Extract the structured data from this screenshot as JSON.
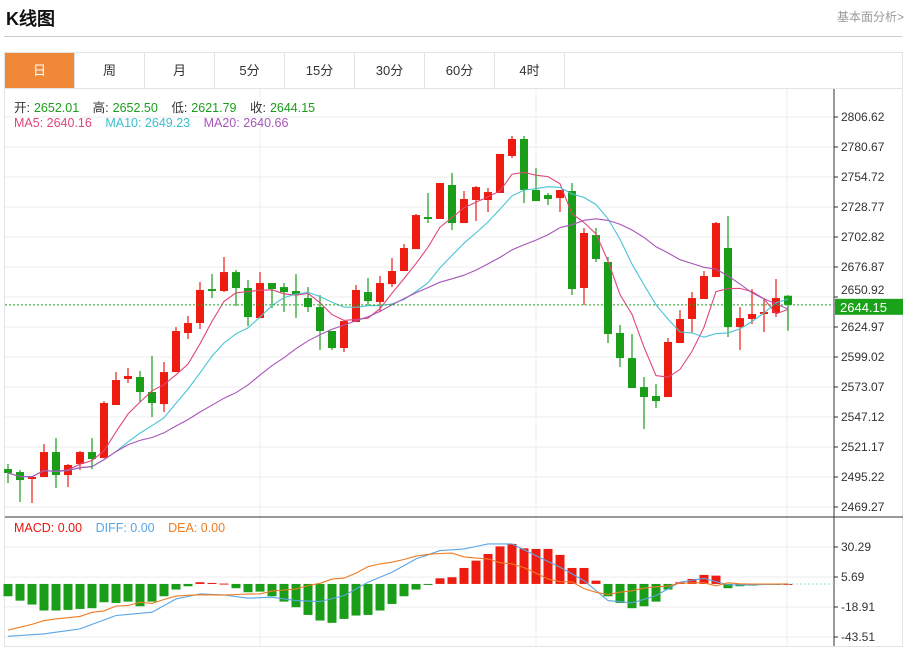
{
  "header": {
    "title": "K线图",
    "link": "基本面分析>"
  },
  "tabs": [
    {
      "label": "日",
      "active": true
    },
    {
      "label": "周"
    },
    {
      "label": "月"
    },
    {
      "label": "5分"
    },
    {
      "label": "15分"
    },
    {
      "label": "30分"
    },
    {
      "label": "60分"
    },
    {
      "label": "4时"
    }
  ],
  "ohlc_legend": {
    "open_label": "开:",
    "open": "2652.01",
    "high_label": "高:",
    "high": "2652.50",
    "low_label": "低:",
    "low": "2621.79",
    "close_label": "收:",
    "close": "2644.15"
  },
  "ma_legend": {
    "ma5": "MA5: 2640.16",
    "ma10": "MA10: 2649.23",
    "ma20": "MA20: 2640.66"
  },
  "macd_legend": {
    "macd": "MACD: 0.00",
    "diff": "DIFF: 0.00",
    "dea": "DEA: 0.00"
  },
  "colors": {
    "up": "#ee1c10",
    "down": "#1a9e1a",
    "ma5": "#e0457b",
    "ma10": "#49c4d4",
    "ma20": "#a855b8",
    "diff": "#5aa5e6",
    "dea": "#f07c21",
    "accent": "#f0883a",
    "last_price": "#1aa31a"
  },
  "chart_data": {
    "type": "candlestick",
    "price_ticks": [
      "2806.62",
      "2780.67",
      "2754.72",
      "2728.77",
      "2702.82",
      "2676.87",
      "2650.92",
      "2624.97",
      "2599.02",
      "2573.07",
      "2547.12",
      "2521.17",
      "2495.22",
      "2469.27"
    ],
    "ylim": [
      2469.27,
      2806.62
    ],
    "last_price": "2644.15",
    "candles_ohlc": [
      [
        2502.1,
        2506.5,
        2490.0,
        2498.7
      ],
      [
        2499.5,
        2501.3,
        2473.6,
        2492.6
      ],
      [
        2493.5,
        2495.2,
        2472.7,
        2495.2
      ],
      [
        2495.2,
        2523.7,
        2495.2,
        2516.8
      ],
      [
        2516.8,
        2528.9,
        2485.7,
        2496.9
      ],
      [
        2496.9,
        2506.5,
        2486.5,
        2505.6
      ],
      [
        2506.5,
        2517.7,
        2501.3,
        2516.8
      ],
      [
        2516.8,
        2528.9,
        2502.1,
        2510.8
      ],
      [
        2511.6,
        2560.9,
        2511.6,
        2559.2
      ],
      [
        2557.5,
        2586.0,
        2557.5,
        2579.1
      ],
      [
        2580.0,
        2589.5,
        2576.5,
        2582.6
      ],
      [
        2581.7,
        2586.9,
        2560.1,
        2568.7
      ],
      [
        2568.7,
        2599.9,
        2547.1,
        2559.2
      ],
      [
        2558.3,
        2594.7,
        2551.4,
        2586.0
      ],
      [
        2586.0,
        2624.9,
        2586.0,
        2621.5
      ],
      [
        2619.8,
        2634.5,
        2614.6,
        2628.4
      ],
      [
        2628.4,
        2663.9,
        2623.2,
        2657.0
      ],
      [
        2657.8,
        2670.8,
        2650.0,
        2656.1
      ],
      [
        2656.1,
        2685.5,
        2655.2,
        2672.5
      ],
      [
        2672.5,
        2674.3,
        2643.1,
        2658.7
      ],
      [
        2658.7,
        2665.6,
        2625.8,
        2633.6
      ],
      [
        2632.7,
        2672.5,
        2632.7,
        2663.0
      ],
      [
        2663.0,
        2663.0,
        2641.4,
        2657.8
      ],
      [
        2659.5,
        2663.0,
        2637.9,
        2655.2
      ],
      [
        2656.1,
        2670.8,
        2632.7,
        2652.6
      ],
      [
        2650.0,
        2659.5,
        2637.9,
        2642.2
      ],
      [
        2642.2,
        2652.6,
        2605.0,
        2621.5
      ],
      [
        2621.5,
        2621.5,
        2605.0,
        2606.8
      ],
      [
        2606.8,
        2630.1,
        2603.3,
        2630.1
      ],
      [
        2629.3,
        2661.3,
        2629.3,
        2657.0
      ],
      [
        2655.2,
        2667.3,
        2644.0,
        2647.4
      ],
      [
        2646.6,
        2669.1,
        2637.9,
        2663.0
      ],
      [
        2662.1,
        2684.6,
        2659.5,
        2673.4
      ],
      [
        2673.4,
        2696.7,
        2673.4,
        2693.3
      ],
      [
        2692.4,
        2722.7,
        2692.4,
        2721.8
      ],
      [
        2720.1,
        2740.9,
        2714.9,
        2718.4
      ],
      [
        2718.4,
        2749.5,
        2718.4,
        2749.5
      ],
      [
        2747.8,
        2758.2,
        2708.9,
        2714.9
      ],
      [
        2714.9,
        2742.6,
        2714.9,
        2735.7
      ],
      [
        2734.8,
        2746.9,
        2716.6,
        2746.0
      ],
      [
        2734.8,
        2745.2,
        2724.4,
        2741.7
      ],
      [
        2740.9,
        2774.6,
        2740.9,
        2774.6
      ],
      [
        2772.9,
        2790.2,
        2771.1,
        2787.6
      ],
      [
        2787.6,
        2790.2,
        2732.2,
        2743.5
      ],
      [
        2743.5,
        2762.5,
        2733.9,
        2733.9
      ],
      [
        2739.1,
        2740.9,
        2730.5,
        2735.7
      ],
      [
        2736.5,
        2743.5,
        2724.4,
        2743.5
      ],
      [
        2742.6,
        2749.5,
        2652.6,
        2657.8
      ],
      [
        2658.7,
        2710.6,
        2644.0,
        2706.3
      ],
      [
        2704.5,
        2710.6,
        2681.2,
        2683.8
      ],
      [
        2681.2,
        2685.5,
        2611.1,
        2618.9
      ],
      [
        2619.8,
        2626.7,
        2590.3,
        2598.1
      ],
      [
        2598.1,
        2618.9,
        2572.2,
        2572.2
      ],
      [
        2573.0,
        2581.7,
        2536.7,
        2564.4
      ],
      [
        2565.3,
        2575.6,
        2554.9,
        2560.9
      ],
      [
        2564.4,
        2615.4,
        2564.4,
        2612.0
      ],
      [
        2611.1,
        2639.6,
        2611.1,
        2631.9
      ],
      [
        2631.9,
        2655.2,
        2619.8,
        2650.0
      ],
      [
        2649.2,
        2673.4,
        2649.2,
        2669.1
      ],
      [
        2668.2,
        2715.8,
        2668.2,
        2714.9
      ],
      [
        2693.3,
        2721.0,
        2616.3,
        2624.9
      ],
      [
        2624.9,
        2642.2,
        2605.0,
        2632.7
      ],
      [
        2631.9,
        2657.8,
        2627.5,
        2636.2
      ],
      [
        2636.2,
        2650.0,
        2620.6,
        2637.9
      ],
      [
        2637.0,
        2666.5,
        2633.6,
        2650.0
      ],
      [
        2652.01,
        2652.5,
        2621.79,
        2644.15
      ]
    ],
    "candles_format": "open, high, low, close",
    "macd_ticks": [
      "30.29",
      "5.69",
      "-18.91",
      "-43.51"
    ],
    "macd_ylim": [
      -43.51,
      30.29
    ],
    "macd_hist": [
      -10.1,
      -13.7,
      -16.9,
      -21.8,
      -21.8,
      -21.3,
      -20.5,
      -19.9,
      -15.0,
      -15.6,
      -14.5,
      -18.3,
      -14.5,
      -10.1,
      -4.6,
      -1.9,
      1.4,
      0.8,
      0.3,
      -3.5,
      -6.8,
      -6.3,
      -10.1,
      -14.5,
      -19.1,
      -25.4,
      -30.0,
      -31.9,
      -28.7,
      -25.9,
      -25.4,
      -21.8,
      -16.4,
      -10.1,
      -4.6,
      -0.8,
      4.6,
      5.5,
      13.1,
      19.1,
      24.6,
      30.8,
      32.8,
      29.2,
      28.7,
      28.7,
      23.8,
      13.1,
      13.1,
      2.7,
      -10.1,
      -15.6,
      -19.9,
      -18.3,
      -14.5,
      -4.6,
      1.4,
      4.1,
      7.4,
      6.8,
      -3.5,
      -1.9,
      -1.4,
      -0.8,
      -0.3,
      0
    ],
    "diff": [
      -42.9,
      -42.3,
      -41.6,
      -41.0,
      -39.6,
      -38.3,
      -36.9,
      -33.2,
      -29.6,
      -25.9,
      -25.0,
      -24.1,
      -23.2,
      -17.8,
      -12.3,
      -10.3,
      -8.2,
      -8.6,
      -9.0,
      -10.4,
      -11.7,
      -11.3,
      -10.9,
      -12.3,
      -13.7,
      -14.1,
      -14.5,
      -12.0,
      -9.6,
      -4.1,
      1.4,
      5.5,
      9.6,
      15.0,
      20.5,
      23.9,
      27.3,
      28.0,
      28.7,
      30.7,
      32.8,
      32.8,
      32.8,
      28.0,
      23.2,
      18.4,
      13.7,
      8.2,
      2.7,
      -5.5,
      -13.7,
      -14.6,
      -15.6,
      -12.6,
      -9.6,
      -4.1,
      1.4,
      3.0,
      4.6,
      1.9,
      -0.8,
      -0.8,
      -0.8,
      -0.5,
      -0.3,
      0
    ]
  }
}
